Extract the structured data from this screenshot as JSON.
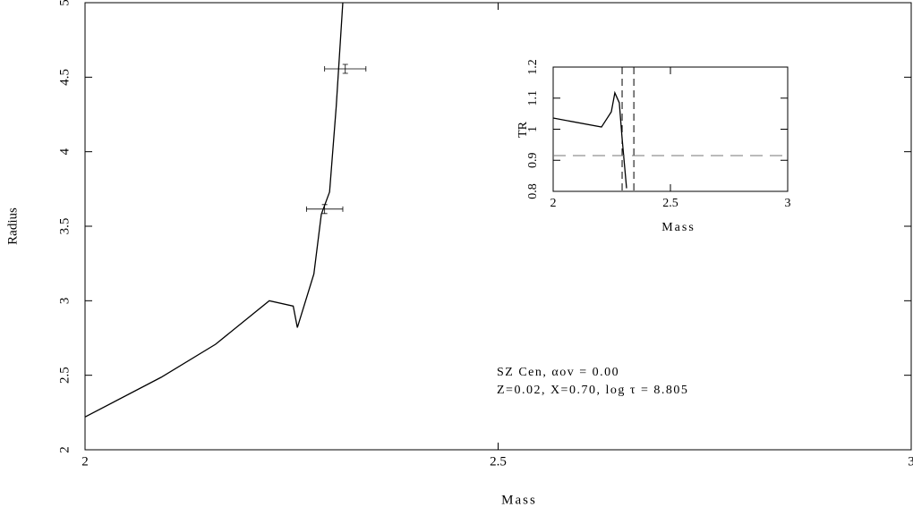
{
  "chart_data": [
    {
      "type": "line",
      "xlabel": "Mass",
      "ylabel": "Radius",
      "x": [
        2.0,
        2.092,
        2.158,
        2.223,
        2.252,
        2.257,
        2.277,
        2.286,
        2.296,
        2.304,
        2.312
      ],
      "values": [
        2.22,
        2.486,
        2.708,
        3.0,
        2.964,
        2.82,
        3.18,
        3.58,
        3.73,
        4.3,
        5.0
      ],
      "color": "#000000",
      "points": {
        "x": [
          2.29,
          2.315
        ],
        "values": [
          3.615,
          4.556
        ],
        "xerr": [
          0.022,
          0.025
        ],
        "yerr": [
          0.03,
          0.03
        ]
      },
      "annotations": [
        "SZ Cen, αov = 0.00",
        "Z=0.02, X=0.70, log τ = 8.805"
      ],
      "xlim": [
        2,
        3
      ],
      "xticks": [
        2,
        2.5,
        3
      ],
      "ylim": [
        2,
        5
      ],
      "yticks": [
        2,
        2.5,
        3,
        3.5,
        4,
        4.5,
        5
      ]
    },
    {
      "type": "line",
      "xlabel": "Mass",
      "ylabel": "TR",
      "x": [
        2.0,
        2.206,
        2.248,
        2.263,
        2.282,
        2.294,
        2.313
      ],
      "values": [
        1.036,
        1.007,
        1.056,
        1.117,
        1.085,
        0.97,
        0.81
      ],
      "color": "#000000",
      "vlines": [
        2.294,
        2.344
      ],
      "hlines": [
        0.915
      ],
      "xlim": [
        2,
        3
      ],
      "xticks": [
        2,
        2.5,
        3
      ],
      "ylim": [
        0.8,
        1.2
      ],
      "yticks": [
        0.8,
        0.9,
        1,
        1.1,
        1.2
      ]
    }
  ]
}
